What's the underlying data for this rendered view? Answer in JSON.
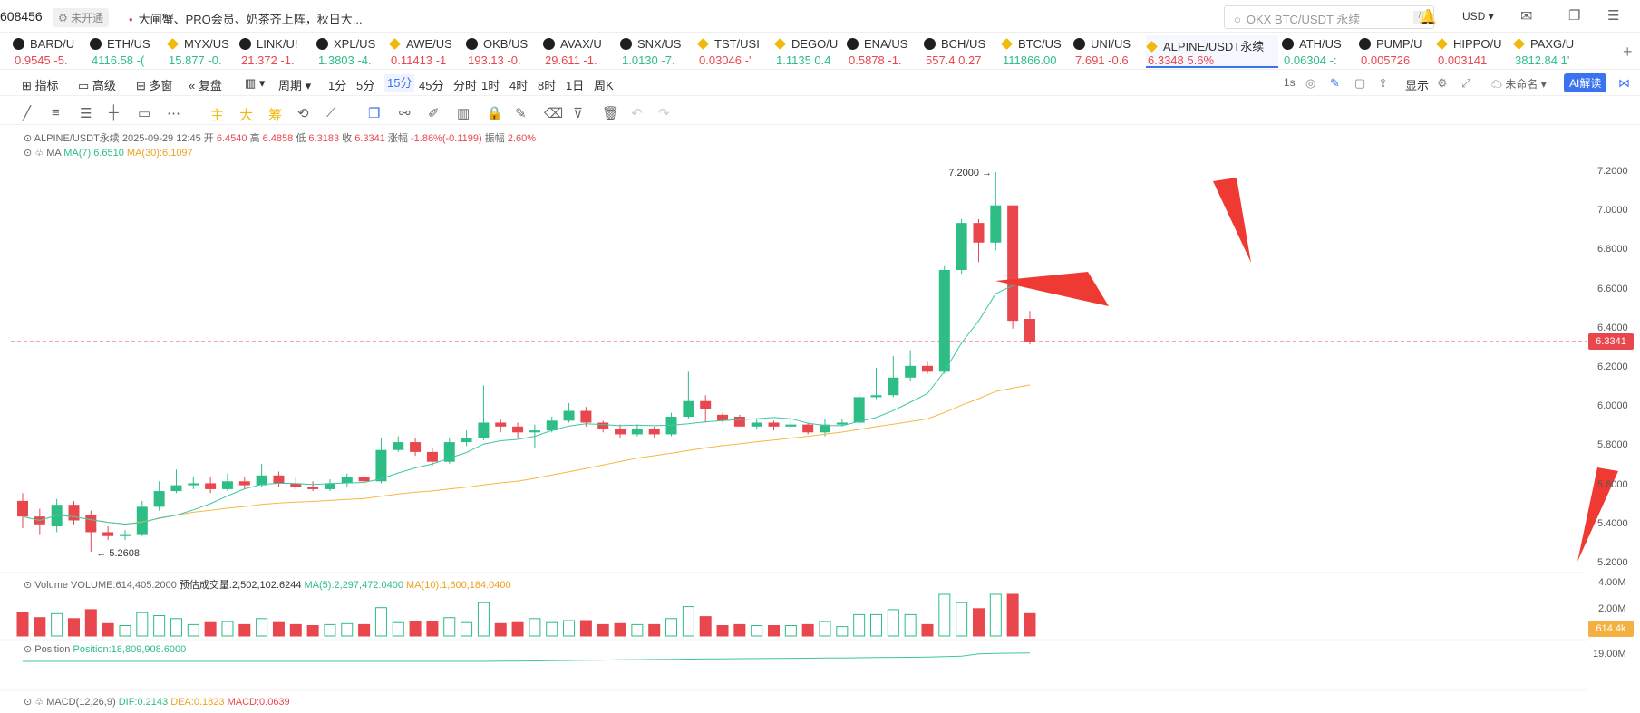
{
  "topbar": {
    "user_id": "608456",
    "status_badge": "未开通",
    "news": "大闸蟹、PRO会员、奶茶齐上阵，秋日大...",
    "search_placeholder": "OKX BTC/USDT 永续",
    "search_kbd": "/",
    "currency": "USD"
  },
  "ticker": [
    {
      "name": "BARD/U",
      "price": "0.9545",
      "change": "-5.",
      "dir": "dn",
      "icon": "x"
    },
    {
      "name": "ETH/US",
      "price": "4116.58",
      "change": "-(",
      "dir": "up",
      "icon": "x"
    },
    {
      "name": "MYX/US",
      "price": "15.877",
      "change": "-0.",
      "dir": "up",
      "icon": "b"
    },
    {
      "name": "LINK/U!",
      "price": "21.372",
      "change": "-1.",
      "dir": "dn",
      "icon": "x"
    },
    {
      "name": "XPL/US",
      "price": "1.3803",
      "change": "-4.",
      "dir": "up",
      "icon": "x"
    },
    {
      "name": "AWE/US",
      "price": "0.11413",
      "change": "-1",
      "dir": "dn",
      "icon": "b"
    },
    {
      "name": "OKB/US",
      "price": "193.13",
      "change": "-0.",
      "dir": "dn",
      "icon": "x"
    },
    {
      "name": "AVAX/U",
      "price": "29.611",
      "change": "-1.",
      "dir": "dn",
      "icon": "x"
    },
    {
      "name": "SNX/US",
      "price": "1.0130",
      "change": "-7.",
      "dir": "up",
      "icon": "x"
    },
    {
      "name": "TST/USI",
      "price": "0.03046",
      "change": "-'",
      "dir": "dn",
      "icon": "b"
    },
    {
      "name": "DEGO/U",
      "price": "1.1135",
      "change": "0.4",
      "dir": "up",
      "icon": "b"
    },
    {
      "name": "ENA/US",
      "price": "0.5878",
      "change": "-1.",
      "dir": "dn",
      "icon": "x"
    },
    {
      "name": "BCH/US",
      "price": "557.4",
      "change": "0.27",
      "dir": "dn",
      "icon": "x"
    },
    {
      "name": "BTC/US",
      "price": "111866.00",
      "change": "",
      "dir": "up",
      "icon": "b"
    },
    {
      "name": "UNI/US",
      "price": "7.691",
      "change": "-0.6",
      "dir": "dn",
      "icon": "x"
    },
    {
      "name": "ALPINE/USDT永续",
      "price": "6.3348",
      "change": "5.6%",
      "dir": "dn",
      "icon": "b",
      "active": true
    },
    {
      "name": "ATH/US",
      "price": "0.06304",
      "change": "-:",
      "dir": "up",
      "icon": "x"
    },
    {
      "name": "PUMP/U",
      "price": "0.005726",
      "change": "",
      "dir": "dn",
      "icon": "x"
    },
    {
      "name": "HIPPO/U",
      "price": "0.003141",
      "change": "",
      "dir": "dn",
      "icon": "b"
    },
    {
      "name": "PAXG/U",
      "price": "3812.84",
      "change": "1'",
      "dir": "up",
      "icon": "b"
    }
  ],
  "toolbar": {
    "indicator": "指标",
    "advanced": "高级",
    "multi": "多窗",
    "replay": "复盘",
    "period": "周期",
    "intervals": [
      "1分",
      "5分",
      "15分",
      "45分",
      "分时",
      "1时",
      "4时",
      "8时",
      "1日",
      "周K"
    ],
    "selected_interval": "15分",
    "sec_label": "1s",
    "display": "显示",
    "unnamed": "未命名",
    "ai": "AI解读"
  },
  "drawbar": {
    "main": "主",
    "big": "大",
    "chip": "筹"
  },
  "chart_data": {
    "type": "candlestick",
    "symbol": "ALPINE/USDT永续",
    "info": {
      "time": "2025-09-29 12:45",
      "open_label": "开",
      "open": "6.4540",
      "high_label": "高",
      "high": "6.4858",
      "low_label": "低",
      "low": "6.3183",
      "close_label": "收",
      "close": "6.3341",
      "change_label": "涨幅",
      "change": "-1.86%(-0.1199)",
      "amp_label": "振幅",
      "amp": "2.60%"
    },
    "ma_line": {
      "label": "MA",
      "ma7": "MA(7):6.6510",
      "ma30": "MA(30):6.1097"
    },
    "colors": {
      "up": "#2ebd85",
      "down": "#e8474e",
      "ma7": "#3cc6a8",
      "ma30": "#f5b942"
    },
    "y_ticks": [
      "7.2000",
      "7.0000",
      "6.8000",
      "6.6000",
      "6.4000",
      "6.2000",
      "6.0000",
      "5.8000",
      "5.6000",
      "5.4000",
      "5.2000"
    ],
    "ylim": [
      5.2,
      7.2
    ],
    "high_marker": "7.2000",
    "low_marker": "5.2608",
    "last_price": "6.3341",
    "candles": [
      [
        5.52,
        5.44,
        5.56,
        5.38
      ],
      [
        5.44,
        5.4,
        5.48,
        5.35
      ],
      [
        5.39,
        5.5,
        5.53,
        5.36
      ],
      [
        5.5,
        5.42,
        5.52,
        5.4
      ],
      [
        5.45,
        5.36,
        5.47,
        5.26
      ],
      [
        5.36,
        5.34,
        5.39,
        5.32
      ],
      [
        5.34,
        5.35,
        5.37,
        5.32
      ],
      [
        5.35,
        5.49,
        5.52,
        5.34
      ],
      [
        5.49,
        5.57,
        5.62,
        5.47
      ],
      [
        5.57,
        5.6,
        5.68,
        5.56
      ],
      [
        5.6,
        5.61,
        5.64,
        5.58
      ],
      [
        5.61,
        5.58,
        5.64,
        5.56
      ],
      [
        5.58,
        5.62,
        5.66,
        5.57
      ],
      [
        5.62,
        5.6,
        5.64,
        5.58
      ],
      [
        5.6,
        5.65,
        5.71,
        5.59
      ],
      [
        5.65,
        5.61,
        5.67,
        5.59
      ],
      [
        5.61,
        5.59,
        5.64,
        5.58
      ],
      [
        5.59,
        5.58,
        5.62,
        5.57
      ],
      [
        5.58,
        5.61,
        5.63,
        5.57
      ],
      [
        5.61,
        5.64,
        5.66,
        5.59
      ],
      [
        5.64,
        5.62,
        5.66,
        5.6
      ],
      [
        5.62,
        5.78,
        5.84,
        5.61
      ],
      [
        5.78,
        5.82,
        5.85,
        5.77
      ],
      [
        5.82,
        5.77,
        5.84,
        5.75
      ],
      [
        5.77,
        5.72,
        5.79,
        5.7
      ],
      [
        5.72,
        5.82,
        5.84,
        5.71
      ],
      [
        5.82,
        5.84,
        5.88,
        5.8
      ],
      [
        5.84,
        5.92,
        6.11,
        5.83
      ],
      [
        5.92,
        5.9,
        5.94,
        5.87
      ],
      [
        5.9,
        5.87,
        5.92,
        5.84
      ],
      [
        5.87,
        5.88,
        5.91,
        5.79
      ],
      [
        5.88,
        5.93,
        5.95,
        5.87
      ],
      [
        5.93,
        5.98,
        6.02,
        5.92
      ],
      [
        5.98,
        5.92,
        6.0,
        5.9
      ],
      [
        5.92,
        5.89,
        5.93,
        5.87
      ],
      [
        5.89,
        5.86,
        5.91,
        5.84
      ],
      [
        5.86,
        5.89,
        5.91,
        5.85
      ],
      [
        5.89,
        5.86,
        5.9,
        5.84
      ],
      [
        5.86,
        5.95,
        5.97,
        5.85
      ],
      [
        5.95,
        6.03,
        6.18,
        5.94
      ],
      [
        6.03,
        5.99,
        6.06,
        5.92
      ],
      [
        5.96,
        5.93,
        5.97,
        5.92
      ],
      [
        5.95,
        5.9,
        5.96,
        5.9
      ],
      [
        5.9,
        5.92,
        5.94,
        5.89
      ],
      [
        5.92,
        5.9,
        5.93,
        5.88
      ],
      [
        5.9,
        5.91,
        5.94,
        5.89
      ],
      [
        5.91,
        5.87,
        5.92,
        5.86
      ],
      [
        5.87,
        5.91,
        5.94,
        5.85
      ],
      [
        5.91,
        5.92,
        5.94,
        5.9
      ],
      [
        5.92,
        6.05,
        6.07,
        5.91
      ],
      [
        6.05,
        6.06,
        6.2,
        6.04
      ],
      [
        6.06,
        6.15,
        6.26,
        6.05
      ],
      [
        6.15,
        6.21,
        6.29,
        6.13
      ],
      [
        6.21,
        6.18,
        6.23,
        6.17
      ],
      [
        6.18,
        6.7,
        6.72,
        6.17
      ],
      [
        6.7,
        6.94,
        6.96,
        6.68
      ],
      [
        6.94,
        6.84,
        6.96,
        6.74
      ],
      [
        6.84,
        7.03,
        7.2,
        6.8
      ],
      [
        7.03,
        6.44,
        7.03,
        6.4
      ],
      [
        6.45,
        6.33,
        6.49,
        6.32
      ]
    ],
    "volume_info": {
      "label": "Volume",
      "vol": "VOLUME:614,405.2000",
      "est": "预估成交量:2,502,102.6244",
      "ma5": "MA(5):2,297,472.0400",
      "ma10": "MA(10):1,600,184.0400"
    },
    "volume_ticks": [
      "4.00M",
      "2.00M"
    ],
    "volume_last": "614.4k",
    "position_info": {
      "label": "Position",
      "value": "Position:18,809,908.6000"
    },
    "position_tick": "19.00M",
    "macd_info": {
      "label": "MACD(12,26,9)",
      "dif": "DIF:0.2143",
      "dea": "DEA:0.1823",
      "macd": "MACD:0.0639"
    }
  }
}
